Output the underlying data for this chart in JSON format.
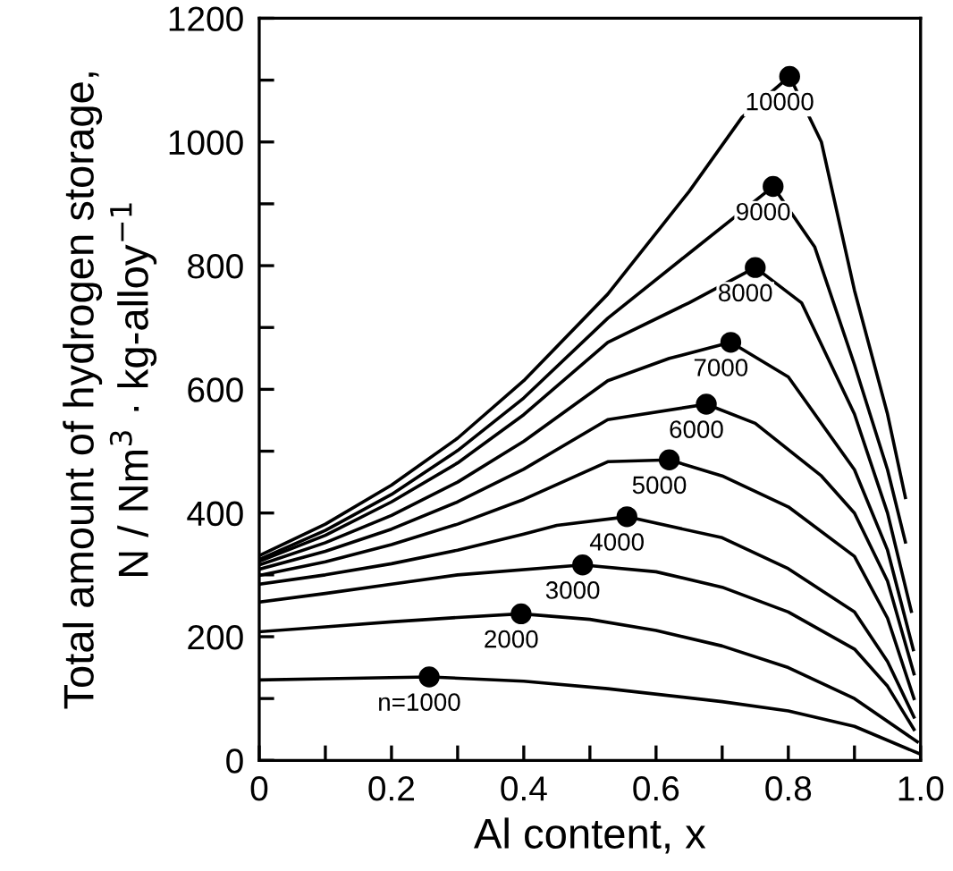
{
  "chart_data": {
    "type": "line",
    "xlabel": "Al content, x",
    "ylabel": "Total amount of hydrogen storage,\nN / Nm$^{3}$ · kg-alloy$^{−1}$",
    "xlim": [
      0,
      1.0
    ],
    "ylim": [
      0,
      1200
    ],
    "xticks": [
      0,
      {
        "value": 0.1,
        "label": null
      },
      0.2,
      {
        "value": 0.3,
        "label": null
      },
      0.4,
      {
        "value": 0.5,
        "label": null
      },
      0.6,
      {
        "value": 0.7,
        "label": null
      },
      0.8,
      {
        "value": 0.9,
        "label": null
      },
      {
        "value": 1.0,
        "label": "1.0"
      }
    ],
    "yticks": [
      0,
      {
        "value": 100,
        "label": null
      },
      200,
      {
        "value": 300,
        "label": null
      },
      400,
      {
        "value": 500,
        "label": null
      },
      600,
      {
        "value": 700,
        "label": null
      },
      800,
      {
        "value": 900,
        "label": null
      },
      1000,
      {
        "value": 1100,
        "label": null
      },
      1200
    ],
    "grid": false,
    "marker": "none",
    "line_style": "solid",
    "series": [
      {
        "color": "#000000",
        "x": [
          0,
          0.1,
          0.257,
          0.4,
          0.527,
          0.7,
          0.8,
          0.9,
          1.0
        ],
        "values": [
          130,
          132,
          135,
          128,
          116,
          95,
          80,
          55,
          10
        ]
      },
      {
        "color": "#000000",
        "x": [
          0,
          0.1,
          0.2,
          0.3,
          0.396,
          0.5,
          0.6,
          0.7,
          0.8,
          0.9,
          0.995
        ],
        "values": [
          208,
          216,
          224,
          231,
          237,
          228,
          210,
          185,
          150,
          100,
          30
        ]
      },
      {
        "color": "#000000",
        "x": [
          0,
          0.1,
          0.2,
          0.3,
          0.489,
          0.6,
          0.7,
          0.8,
          0.9,
          0.95,
          0.99
        ],
        "values": [
          256,
          270,
          285,
          300,
          316,
          305,
          280,
          240,
          180,
          120,
          50
        ]
      },
      {
        "color": "#000000",
        "x": [
          0,
          0.1,
          0.2,
          0.3,
          0.4,
          0.45,
          0.556,
          0.7,
          0.8,
          0.9,
          0.95,
          0.99
        ],
        "values": [
          285,
          300,
          318,
          340,
          366,
          380,
          394,
          360,
          310,
          240,
          160,
          70
        ]
      },
      {
        "color": "#000000",
        "x": [
          0,
          0.1,
          0.2,
          0.3,
          0.4,
          0.527,
          0.62,
          0.7,
          0.8,
          0.9,
          0.95,
          0.99
        ],
        "values": [
          299,
          321,
          349,
          382,
          422,
          483,
          486,
          460,
          410,
          330,
          230,
          100
        ]
      },
      {
        "color": "#000000",
        "x": [
          0,
          0.1,
          0.2,
          0.3,
          0.4,
          0.527,
          0.676,
          0.75,
          0.85,
          0.9,
          0.95,
          0.99
        ],
        "values": [
          309,
          338,
          374,
          418,
          471,
          551,
          576,
          545,
          460,
          400,
          290,
          140
        ]
      },
      {
        "color": "#000000",
        "x": [
          0,
          0.1,
          0.2,
          0.3,
          0.4,
          0.527,
          0.62,
          0.713,
          0.8,
          0.9,
          0.95,
          0.989
        ],
        "values": [
          316,
          352,
          396,
          450,
          516,
          614,
          650,
          676,
          620,
          470,
          340,
          179
        ]
      },
      {
        "color": "#000000",
        "x": [
          0,
          0.1,
          0.2,
          0.3,
          0.4,
          0.527,
          0.65,
          0.75,
          0.82,
          0.9,
          0.95,
          0.986
        ],
        "values": [
          322,
          364,
          418,
          481,
          559,
          676,
          740,
          797,
          740,
          560,
          400,
          241
        ]
      },
      {
        "color": "#000000",
        "x": [
          0,
          0.1,
          0.2,
          0.3,
          0.4,
          0.527,
          0.65,
          0.777,
          0.84,
          0.9,
          0.95,
          0.977
        ],
        "values": [
          325,
          372,
          430,
          501,
          586,
          715,
          820,
          928,
          830,
          640,
          470,
          353
        ]
      },
      {
        "color": "#000000",
        "x": [
          0,
          0.1,
          0.2,
          0.3,
          0.4,
          0.527,
          0.65,
          0.73,
          0.802,
          0.85,
          0.9,
          0.95,
          0.977
        ],
        "values": [
          331,
          382,
          445,
          521,
          614,
          754,
          920,
          1040,
          1106,
          1000,
          760,
          560,
          425
        ]
      },
      {
        "type": "scatter",
        "marker": "circle",
        "color": "#000000",
        "x": [
          0.257,
          0.396,
          0.489,
          0.556,
          0.62,
          0.676,
          0.713,
          0.75,
          0.777,
          0.802
        ],
        "values": [
          135,
          237,
          316,
          394,
          486,
          576,
          676,
          797,
          928,
          1106
        ]
      }
    ],
    "annotations": [
      {
        "text": "n=1000",
        "x": 0.257,
        "y": 135
      },
      {
        "text": "2000",
        "x": 0.396,
        "y": 237
      },
      {
        "text": "3000",
        "x": 0.489,
        "y": 316
      },
      {
        "text": "4000",
        "x": 0.556,
        "y": 394
      },
      {
        "text": "5000",
        "x": 0.62,
        "y": 486
      },
      {
        "text": "6000",
        "x": 0.676,
        "y": 576
      },
      {
        "text": "7000",
        "x": 0.713,
        "y": 676
      },
      {
        "text": "8000",
        "x": 0.75,
        "y": 797
      },
      {
        "text": "9000",
        "x": 0.777,
        "y": 928
      },
      {
        "text": "10000",
        "x": 0.802,
        "y": 1106
      }
    ]
  }
}
